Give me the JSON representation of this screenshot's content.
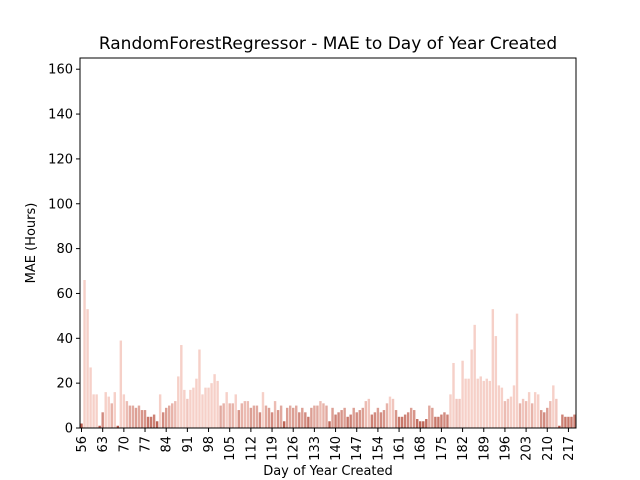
{
  "chart_data": {
    "type": "bar",
    "title": "RandomForestRegressor - MAE to Day of Year Created",
    "xlabel": "Day of Year Created",
    "ylabel": "MAE (Hours)",
    "x_start": 56,
    "x_end": 223,
    "xticks": [
      56,
      63,
      70,
      77,
      84,
      91,
      98,
      105,
      112,
      119,
      126,
      133,
      140,
      147,
      154,
      161,
      168,
      175,
      182,
      189,
      196,
      203,
      210,
      217
    ],
    "yticks": [
      0,
      20,
      40,
      60,
      80,
      100,
      120,
      140,
      160
    ],
    "ylim": [
      0,
      165
    ],
    "grid": false,
    "values": [
      2,
      66,
      53,
      27,
      15,
      15,
      1,
      7,
      16,
      14,
      11,
      16,
      1,
      39,
      15,
      12,
      10,
      10,
      9,
      10,
      8,
      8,
      5,
      5,
      6,
      3,
      15,
      7,
      9,
      10,
      11,
      12,
      23,
      37,
      17,
      13,
      17,
      18,
      22,
      35,
      15,
      18,
      18,
      20,
      24,
      21,
      10,
      11,
      16,
      11,
      11,
      15,
      8,
      11,
      12,
      12,
      9,
      10,
      10,
      7,
      16,
      10,
      9,
      7,
      12,
      8,
      10,
      3,
      9,
      10,
      9,
      10,
      7,
      9,
      7,
      5,
      9,
      10,
      10,
      12,
      11,
      10,
      3,
      9,
      6,
      7,
      8,
      9,
      5,
      6,
      9,
      7,
      8,
      9,
      12,
      13,
      6,
      7,
      9,
      7,
      8,
      11,
      14,
      13,
      8,
      5,
      5,
      6,
      7,
      9,
      8,
      4,
      3,
      3,
      4,
      10,
      9,
      5,
      5,
      6,
      7,
      6,
      15,
      29,
      13,
      13,
      30,
      22,
      22,
      35,
      46,
      22,
      23,
      21,
      22,
      21,
      53,
      41,
      19,
      18,
      12,
      13,
      14,
      19,
      51,
      11,
      13,
      12,
      16,
      11,
      16,
      15,
      8,
      7,
      9,
      12,
      19,
      13,
      1,
      6,
      5,
      5,
      5,
      6
    ],
    "color_light": "#f6d0c8",
    "color_dark": "#b85a4c"
  }
}
